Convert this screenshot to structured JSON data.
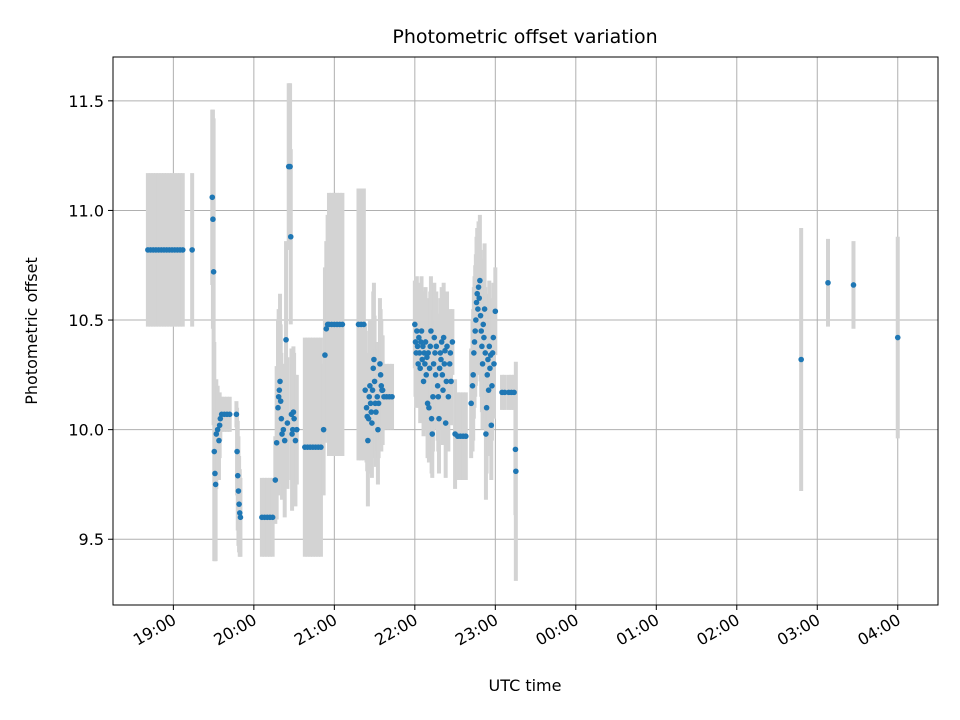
{
  "chart_data": {
    "type": "scatter",
    "title": "Photometric offset variation",
    "xlabel": "UTC time",
    "ylabel": "Photometric offset",
    "x_unit": "minutes after 19:00 UTC",
    "xlim": [
      -45,
      570
    ],
    "ylim": [
      9.2,
      11.7
    ],
    "grid": true,
    "colors": {
      "marker": "#1f77b4",
      "errorbar": "#d3d3d3",
      "grid": "#b0b0b0"
    },
    "x_ticks": [
      {
        "value": 0,
        "label": "19:00"
      },
      {
        "value": 60,
        "label": "20:00"
      },
      {
        "value": 120,
        "label": "21:00"
      },
      {
        "value": 180,
        "label": "22:00"
      },
      {
        "value": 240,
        "label": "23:00"
      },
      {
        "value": 300,
        "label": "00:00"
      },
      {
        "value": 360,
        "label": "01:00"
      },
      {
        "value": 420,
        "label": "02:00"
      },
      {
        "value": 480,
        "label": "03:00"
      },
      {
        "value": 540,
        "label": "04:00"
      }
    ],
    "y_ticks": [
      {
        "value": 9.5,
        "label": "9.5"
      },
      {
        "value": 10.0,
        "label": "10.0"
      },
      {
        "value": 10.5,
        "label": "10.5"
      },
      {
        "value": 11.0,
        "label": "11.0"
      },
      {
        "value": 11.5,
        "label": "11.5"
      }
    ],
    "points": [
      {
        "x": -19,
        "y": 10.82,
        "err": 0.35
      },
      {
        "x": -17,
        "y": 10.82,
        "err": 0.35
      },
      {
        "x": -15,
        "y": 10.82,
        "err": 0.35
      },
      {
        "x": -13,
        "y": 10.82,
        "err": 0.35
      },
      {
        "x": -11,
        "y": 10.82,
        "err": 0.35
      },
      {
        "x": -9,
        "y": 10.82,
        "err": 0.35
      },
      {
        "x": -7,
        "y": 10.82,
        "err": 0.35
      },
      {
        "x": -5,
        "y": 10.82,
        "err": 0.35
      },
      {
        "x": -3,
        "y": 10.82,
        "err": 0.35
      },
      {
        "x": -1,
        "y": 10.82,
        "err": 0.35
      },
      {
        "x": 1,
        "y": 10.82,
        "err": 0.35
      },
      {
        "x": 3,
        "y": 10.82,
        "err": 0.35
      },
      {
        "x": 5,
        "y": 10.82,
        "err": 0.35
      },
      {
        "x": 7,
        "y": 10.82,
        "err": 0.35
      },
      {
        "x": 14,
        "y": 10.82,
        "err": 0.35
      },
      {
        "x": 29,
        "y": 11.06,
        "err": 0.4
      },
      {
        "x": 29.5,
        "y": 10.96,
        "err": 0.5
      },
      {
        "x": 30,
        "y": 10.72,
        "err": 0.7
      },
      {
        "x": 30.5,
        "y": 9.9,
        "err": 0.5
      },
      {
        "x": 31,
        "y": 9.8,
        "err": 0.4
      },
      {
        "x": 31.5,
        "y": 9.75,
        "err": 0.35
      },
      {
        "x": 32,
        "y": 9.98,
        "err": 0.25
      },
      {
        "x": 33,
        "y": 10.0,
        "err": 0.2
      },
      {
        "x": 34,
        "y": 9.95,
        "err": 0.18
      },
      {
        "x": 34.5,
        "y": 10.02,
        "err": 0.15
      },
      {
        "x": 35,
        "y": 10.05,
        "err": 0.1
      },
      {
        "x": 36,
        "y": 10.07,
        "err": 0.08
      },
      {
        "x": 38,
        "y": 10.07,
        "err": 0.08
      },
      {
        "x": 40,
        "y": 10.07,
        "err": 0.08
      },
      {
        "x": 42,
        "y": 10.07,
        "err": 0.08
      },
      {
        "x": 47,
        "y": 10.07,
        "err": 0.06
      },
      {
        "x": 47.5,
        "y": 9.9,
        "err": 0.2
      },
      {
        "x": 48,
        "y": 9.79,
        "err": 0.25
      },
      {
        "x": 48.5,
        "y": 9.72,
        "err": 0.25
      },
      {
        "x": 49,
        "y": 9.66,
        "err": 0.22
      },
      {
        "x": 49.5,
        "y": 9.62,
        "err": 0.2
      },
      {
        "x": 50,
        "y": 9.6,
        "err": 0.18
      },
      {
        "x": 66,
        "y": 9.6,
        "err": 0.18
      },
      {
        "x": 68,
        "y": 9.6,
        "err": 0.18
      },
      {
        "x": 70,
        "y": 9.6,
        "err": 0.18
      },
      {
        "x": 72,
        "y": 9.6,
        "err": 0.18
      },
      {
        "x": 74,
        "y": 9.6,
        "err": 0.18
      },
      {
        "x": 76,
        "y": 9.77,
        "err": 0.2
      },
      {
        "x": 77,
        "y": 9.94,
        "err": 0.35
      },
      {
        "x": 78,
        "y": 10.1,
        "err": 0.4
      },
      {
        "x": 78.5,
        "y": 10.15,
        "err": 0.4
      },
      {
        "x": 79,
        "y": 10.18,
        "err": 0.35
      },
      {
        "x": 79.5,
        "y": 10.22,
        "err": 0.4
      },
      {
        "x": 80,
        "y": 10.13,
        "err": 0.35
      },
      {
        "x": 80.5,
        "y": 10.05,
        "err": 0.3
      },
      {
        "x": 81,
        "y": 9.98,
        "err": 0.3
      },
      {
        "x": 82,
        "y": 10.0,
        "err": 0.3
      },
      {
        "x": 83,
        "y": 9.95,
        "err": 0.35
      },
      {
        "x": 84,
        "y": 10.41,
        "err": 0.45
      },
      {
        "x": 85,
        "y": 10.03,
        "err": 0.3
      },
      {
        "x": 86,
        "y": 11.2,
        "err": 0.38
      },
      {
        "x": 87,
        "y": 11.2,
        "err": 0.38
      },
      {
        "x": 87.5,
        "y": 10.88,
        "err": 0.4
      },
      {
        "x": 88,
        "y": 10.07,
        "err": 0.3
      },
      {
        "x": 88.5,
        "y": 9.98,
        "err": 0.35
      },
      {
        "x": 89,
        "y": 10.0,
        "err": 0.3
      },
      {
        "x": 89.5,
        "y": 10.08,
        "err": 0.3
      },
      {
        "x": 90,
        "y": 10.05,
        "err": 0.3
      },
      {
        "x": 91,
        "y": 9.95,
        "err": 0.3
      },
      {
        "x": 92,
        "y": 10.0,
        "err": 0.25
      },
      {
        "x": 98,
        "y": 9.92,
        "err": 0.5
      },
      {
        "x": 100,
        "y": 9.92,
        "err": 0.5
      },
      {
        "x": 102,
        "y": 9.92,
        "err": 0.5
      },
      {
        "x": 104,
        "y": 9.92,
        "err": 0.5
      },
      {
        "x": 106,
        "y": 9.92,
        "err": 0.5
      },
      {
        "x": 108,
        "y": 9.92,
        "err": 0.5
      },
      {
        "x": 110,
        "y": 9.92,
        "err": 0.5
      },
      {
        "x": 112,
        "y": 10.0,
        "err": 0.3
      },
      {
        "x": 113,
        "y": 10.34,
        "err": 0.4
      },
      {
        "x": 114,
        "y": 10.46,
        "err": 0.4
      },
      {
        "x": 115,
        "y": 10.48,
        "err": 0.5
      },
      {
        "x": 116,
        "y": 10.48,
        "err": 0.6
      },
      {
        "x": 118,
        "y": 10.48,
        "err": 0.6
      },
      {
        "x": 120,
        "y": 10.48,
        "err": 0.6
      },
      {
        "x": 122,
        "y": 10.48,
        "err": 0.6
      },
      {
        "x": 124,
        "y": 10.48,
        "err": 0.6
      },
      {
        "x": 126,
        "y": 10.48,
        "err": 0.6
      },
      {
        "x": 138,
        "y": 10.48,
        "err": 0.62
      },
      {
        "x": 140,
        "y": 10.48,
        "err": 0.62
      },
      {
        "x": 142,
        "y": 10.48,
        "err": 0.62
      },
      {
        "x": 143,
        "y": 10.18,
        "err": 0.3
      },
      {
        "x": 144,
        "y": 10.1,
        "err": 0.25
      },
      {
        "x": 144.5,
        "y": 10.06,
        "err": 0.25
      },
      {
        "x": 145,
        "y": 9.95,
        "err": 0.3
      },
      {
        "x": 145.5,
        "y": 10.05,
        "err": 0.25
      },
      {
        "x": 146,
        "y": 10.15,
        "err": 0.3
      },
      {
        "x": 146.5,
        "y": 10.2,
        "err": 0.3
      },
      {
        "x": 147,
        "y": 10.12,
        "err": 0.25
      },
      {
        "x": 147.5,
        "y": 10.08,
        "err": 0.25
      },
      {
        "x": 148,
        "y": 10.03,
        "err": 0.25
      },
      {
        "x": 148.5,
        "y": 10.18,
        "err": 0.3
      },
      {
        "x": 149,
        "y": 10.28,
        "err": 0.35
      },
      {
        "x": 149.5,
        "y": 10.32,
        "err": 0.35
      },
      {
        "x": 150,
        "y": 10.22,
        "err": 0.3
      },
      {
        "x": 150.5,
        "y": 10.12,
        "err": 0.25
      },
      {
        "x": 151,
        "y": 10.08,
        "err": 0.25
      },
      {
        "x": 152,
        "y": 10.15,
        "err": 0.25
      },
      {
        "x": 152.5,
        "y": 10.0,
        "err": 0.25
      },
      {
        "x": 153,
        "y": 10.12,
        "err": 0.25
      },
      {
        "x": 154,
        "y": 10.3,
        "err": 0.3
      },
      {
        "x": 154.5,
        "y": 10.25,
        "err": 0.3
      },
      {
        "x": 155,
        "y": 10.2,
        "err": 0.3
      },
      {
        "x": 155.5,
        "y": 10.18,
        "err": 0.25
      },
      {
        "x": 156,
        "y": 10.18,
        "err": 0.25
      },
      {
        "x": 157,
        "y": 10.15,
        "err": 0.15
      },
      {
        "x": 159,
        "y": 10.15,
        "err": 0.15
      },
      {
        "x": 161,
        "y": 10.15,
        "err": 0.15
      },
      {
        "x": 163,
        "y": 10.15,
        "err": 0.15
      },
      {
        "x": 180,
        "y": 10.48,
        "err": 0.2
      },
      {
        "x": 180.5,
        "y": 10.4,
        "err": 0.25
      },
      {
        "x": 181,
        "y": 10.35,
        "err": 0.25
      },
      {
        "x": 181.5,
        "y": 10.45,
        "err": 0.25
      },
      {
        "x": 182,
        "y": 10.38,
        "err": 0.25
      },
      {
        "x": 182.5,
        "y": 10.3,
        "err": 0.2
      },
      {
        "x": 183,
        "y": 10.42,
        "err": 0.25
      },
      {
        "x": 183.5,
        "y": 10.35,
        "err": 0.25
      },
      {
        "x": 184,
        "y": 10.28,
        "err": 0.25
      },
      {
        "x": 184.5,
        "y": 10.4,
        "err": 0.25
      },
      {
        "x": 185,
        "y": 10.45,
        "err": 0.25
      },
      {
        "x": 185.5,
        "y": 10.32,
        "err": 0.25
      },
      {
        "x": 186,
        "y": 10.38,
        "err": 0.25
      },
      {
        "x": 186.5,
        "y": 10.22,
        "err": 0.25
      },
      {
        "x": 187,
        "y": 10.35,
        "err": 0.25
      },
      {
        "x": 187.5,
        "y": 10.3,
        "err": 0.25
      },
      {
        "x": 188,
        "y": 10.4,
        "err": 0.25
      },
      {
        "x": 188.5,
        "y": 10.25,
        "err": 0.25
      },
      {
        "x": 189,
        "y": 10.33,
        "err": 0.25
      },
      {
        "x": 189.5,
        "y": 10.12,
        "err": 0.25
      },
      {
        "x": 190,
        "y": 10.35,
        "err": 0.25
      },
      {
        "x": 190.5,
        "y": 10.1,
        "err": 0.25
      },
      {
        "x": 191,
        "y": 10.28,
        "err": 0.25
      },
      {
        "x": 191.5,
        "y": 10.38,
        "err": 0.25
      },
      {
        "x": 192,
        "y": 10.45,
        "err": 0.25
      },
      {
        "x": 192.5,
        "y": 10.05,
        "err": 0.25
      },
      {
        "x": 193,
        "y": 9.98,
        "err": 0.2
      },
      {
        "x": 193.5,
        "y": 10.15,
        "err": 0.25
      },
      {
        "x": 194,
        "y": 10.3,
        "err": 0.25
      },
      {
        "x": 194.5,
        "y": 10.42,
        "err": 0.25
      },
      {
        "x": 195,
        "y": 10.35,
        "err": 0.25
      },
      {
        "x": 195.5,
        "y": 10.25,
        "err": 0.25
      },
      {
        "x": 196,
        "y": 10.38,
        "err": 0.25
      },
      {
        "x": 197,
        "y": 10.2,
        "err": 0.25
      },
      {
        "x": 197.5,
        "y": 10.15,
        "err": 0.25
      },
      {
        "x": 198,
        "y": 10.05,
        "err": 0.25
      },
      {
        "x": 198.5,
        "y": 10.28,
        "err": 0.25
      },
      {
        "x": 199,
        "y": 10.35,
        "err": 0.25
      },
      {
        "x": 199.5,
        "y": 10.32,
        "err": 0.25
      },
      {
        "x": 200,
        "y": 10.4,
        "err": 0.25
      },
      {
        "x": 200.5,
        "y": 10.25,
        "err": 0.25
      },
      {
        "x": 201,
        "y": 10.18,
        "err": 0.25
      },
      {
        "x": 201.5,
        "y": 10.42,
        "err": 0.25
      },
      {
        "x": 202,
        "y": 10.3,
        "err": 0.25
      },
      {
        "x": 202.5,
        "y": 10.36,
        "err": 0.25
      },
      {
        "x": 203,
        "y": 10.03,
        "err": 0.25
      },
      {
        "x": 203.5,
        "y": 10.22,
        "err": 0.25
      },
      {
        "x": 204,
        "y": 10.38,
        "err": 0.25
      },
      {
        "x": 205,
        "y": 10.15,
        "err": 0.25
      },
      {
        "x": 206,
        "y": 10.3,
        "err": 0.2
      },
      {
        "x": 206.5,
        "y": 10.35,
        "err": 0.2
      },
      {
        "x": 207,
        "y": 10.22,
        "err": 0.2
      },
      {
        "x": 208,
        "y": 10.4,
        "err": 0.15
      },
      {
        "x": 210,
        "y": 9.98,
        "err": 0.25
      },
      {
        "x": 212,
        "y": 9.97,
        "err": 0.2
      },
      {
        "x": 214,
        "y": 9.97,
        "err": 0.2
      },
      {
        "x": 216,
        "y": 9.97,
        "err": 0.2
      },
      {
        "x": 218,
        "y": 9.97,
        "err": 0.2
      },
      {
        "x": 222,
        "y": 10.12,
        "err": 0.25
      },
      {
        "x": 223,
        "y": 10.2,
        "err": 0.3
      },
      {
        "x": 223.5,
        "y": 10.25,
        "err": 0.3
      },
      {
        "x": 224,
        "y": 10.35,
        "err": 0.3
      },
      {
        "x": 224.5,
        "y": 10.4,
        "err": 0.3
      },
      {
        "x": 225,
        "y": 10.45,
        "err": 0.3
      },
      {
        "x": 225.5,
        "y": 10.5,
        "err": 0.3
      },
      {
        "x": 226,
        "y": 10.58,
        "err": 0.3
      },
      {
        "x": 226.5,
        "y": 10.62,
        "err": 0.3
      },
      {
        "x": 227,
        "y": 10.55,
        "err": 0.3
      },
      {
        "x": 227.5,
        "y": 10.65,
        "err": 0.3
      },
      {
        "x": 228,
        "y": 10.6,
        "err": 0.3
      },
      {
        "x": 228.5,
        "y": 10.68,
        "err": 0.3
      },
      {
        "x": 229,
        "y": 10.52,
        "err": 0.3
      },
      {
        "x": 229.5,
        "y": 10.45,
        "err": 0.3
      },
      {
        "x": 230,
        "y": 10.38,
        "err": 0.3
      },
      {
        "x": 230.5,
        "y": 10.3,
        "err": 0.3
      },
      {
        "x": 231,
        "y": 10.48,
        "err": 0.3
      },
      {
        "x": 231.5,
        "y": 10.42,
        "err": 0.3
      },
      {
        "x": 232,
        "y": 10.55,
        "err": 0.3
      },
      {
        "x": 232.5,
        "y": 10.35,
        "err": 0.3
      },
      {
        "x": 233,
        "y": 9.98,
        "err": 0.3
      },
      {
        "x": 233.5,
        "y": 10.1,
        "err": 0.3
      },
      {
        "x": 234,
        "y": 10.25,
        "err": 0.3
      },
      {
        "x": 234.5,
        "y": 10.32,
        "err": 0.3
      },
      {
        "x": 235,
        "y": 10.18,
        "err": 0.3
      },
      {
        "x": 235.5,
        "y": 10.38,
        "err": 0.3
      },
      {
        "x": 236,
        "y": 10.28,
        "err": 0.25
      },
      {
        "x": 236.5,
        "y": 10.34,
        "err": 0.25
      },
      {
        "x": 237,
        "y": 10.02,
        "err": 0.25
      },
      {
        "x": 237.5,
        "y": 10.2,
        "err": 0.25
      },
      {
        "x": 238,
        "y": 10.35,
        "err": 0.25
      },
      {
        "x": 238.5,
        "y": 10.42,
        "err": 0.25
      },
      {
        "x": 239,
        "y": 10.3,
        "err": 0.25
      },
      {
        "x": 240,
        "y": 10.54,
        "err": 0.2
      },
      {
        "x": 245,
        "y": 10.17,
        "err": 0.08
      },
      {
        "x": 247,
        "y": 10.17,
        "err": 0.08
      },
      {
        "x": 250,
        "y": 10.17,
        "err": 0.08
      },
      {
        "x": 252,
        "y": 10.17,
        "err": 0.08
      },
      {
        "x": 254,
        "y": 10.17,
        "err": 0.08
      },
      {
        "x": 255,
        "y": 9.91,
        "err": 0.3
      },
      {
        "x": 255.3,
        "y": 9.81,
        "err": 0.5
      },
      {
        "x": 468,
        "y": 10.32,
        "err": 0.6
      },
      {
        "x": 488,
        "y": 10.67,
        "err": 0.2
      },
      {
        "x": 507,
        "y": 10.66,
        "err": 0.2
      },
      {
        "x": 540,
        "y": 10.42,
        "err": 0.46
      }
    ]
  }
}
